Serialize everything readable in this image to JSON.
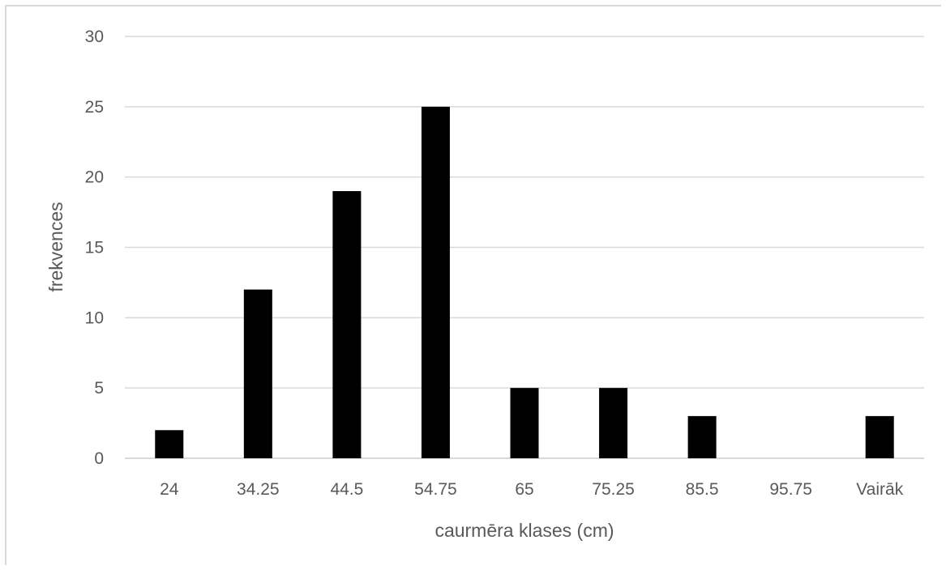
{
  "chart_data": {
    "type": "bar",
    "title": "",
    "xlabel": "caurmēra klases (cm)",
    "ylabel": "frekvences",
    "categories": [
      "24",
      "34.25",
      "44.5",
      "54.75",
      "65",
      "75.25",
      "85.5",
      "95.75",
      "Vairāk"
    ],
    "values": [
      2,
      12,
      19,
      25,
      5,
      5,
      3,
      0,
      3
    ],
    "ylim": [
      0,
      30
    ],
    "yticks": [
      "0",
      "5",
      "10",
      "15",
      "20",
      "25",
      "30"
    ],
    "grid": true,
    "legend": "none",
    "bar_color": "#000000",
    "grid_color": "#d9d9d9"
  }
}
